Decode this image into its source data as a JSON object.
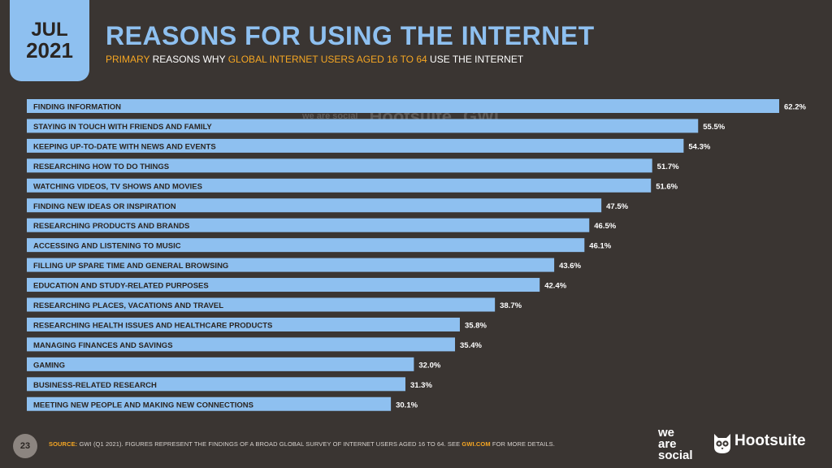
{
  "header": {
    "month": "JUL",
    "year": "2021",
    "title": "REASONS FOR USING THE INTERNET",
    "subtitle_part1": "PRIMARY",
    "subtitle_part2": " REASONS WHY ",
    "subtitle_part3": "GLOBAL INTERNET USERS AGED 16 TO 64",
    "subtitle_part4": " USE THE INTERNET"
  },
  "watermark": {
    "brand1": "we are social",
    "brand2": "Hootsuite",
    "brand3": "GWI."
  },
  "footer": {
    "page_number": "23",
    "source_label": "SOURCE:",
    "source_text": " GWI (Q1 2021). FIGURES REPRESENT THE FINDINGS OF A BROAD GLOBAL SURVEY OF INTERNET USERS AGED 16 TO 64. SEE ",
    "source_link": "GWI.COM",
    "source_end": " FOR MORE DETAILS.",
    "logo_line1": "we",
    "logo_line2": "are",
    "logo_line3": "social",
    "logo_hootsuite": "Hootsuite"
  },
  "colors": {
    "background": "#3a3532",
    "bar": "#8ec0f0",
    "accent": "#f5a623",
    "title": "#8ec0f0"
  },
  "chart_data": {
    "type": "bar",
    "orientation": "horizontal",
    "categories": [
      "FINDING INFORMATION",
      "STAYING IN TOUCH WITH FRIENDS AND FAMILY",
      "KEEPING UP-TO-DATE WITH NEWS AND EVENTS",
      "RESEARCHING HOW TO DO THINGS",
      "WATCHING VIDEOS, TV SHOWS AND MOVIES",
      "FINDING NEW IDEAS OR INSPIRATION",
      "RESEARCHING PRODUCTS AND BRANDS",
      "ACCESSING AND LISTENING TO MUSIC",
      "FILLING UP SPARE TIME AND GENERAL BROWSING",
      "EDUCATION AND STUDY-RELATED PURPOSES",
      "RESEARCHING PLACES, VACATIONS AND TRAVEL",
      "RESEARCHING HEALTH ISSUES AND HEALTHCARE PRODUCTS",
      "MANAGING FINANCES AND SAVINGS",
      "GAMING",
      "BUSINESS-RELATED RESEARCH",
      "MEETING NEW PEOPLE AND MAKING NEW CONNECTIONS"
    ],
    "values": [
      62.2,
      55.5,
      54.3,
      51.7,
      51.6,
      47.5,
      46.5,
      46.1,
      43.6,
      42.4,
      38.7,
      35.8,
      35.4,
      32.0,
      31.3,
      30.1
    ],
    "value_labels": [
      "62.2%",
      "55.5%",
      "54.3%",
      "51.7%",
      "51.6%",
      "47.5%",
      "46.5%",
      "46.1%",
      "43.6%",
      "42.4%",
      "38.7%",
      "35.8%",
      "35.4%",
      "32.0%",
      "31.3%",
      "30.1%"
    ],
    "unit": "%",
    "title": "REASONS FOR USING THE INTERNET",
    "xlabel": "",
    "ylabel": "",
    "xlim": [
      0,
      62.2
    ],
    "grid": false,
    "legend": "none"
  }
}
